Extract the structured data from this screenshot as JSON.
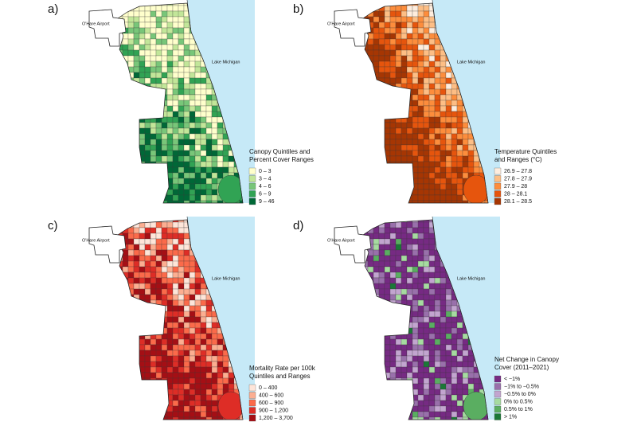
{
  "airport_label": "O'Hare Airport",
  "lake_label": "Lake Michigan",
  "panels": [
    {
      "label": "a)",
      "legend_title": [
        "Canopy Quintiles and",
        "Percent Cover Ranges"
      ],
      "legend": [
        {
          "label": "0 – 3",
          "color": "#ffffcc"
        },
        {
          "label": "3 – 4",
          "color": "#c2e699"
        },
        {
          "label": "4 – 6",
          "color": "#78c679"
        },
        {
          "label": "6 – 9",
          "color": "#31a354"
        },
        {
          "label": "9 – 46",
          "color": "#006837"
        }
      ]
    },
    {
      "label": "b)",
      "legend_title": [
        "Temperature Quintiles",
        "and Ranges (°C)"
      ],
      "legend": [
        {
          "label": "26.9 – 27.8",
          "color": "#feedde"
        },
        {
          "label": "27.8 – 27.9",
          "color": "#fdbe85"
        },
        {
          "label": "27.9 – 28",
          "color": "#fd8d3c"
        },
        {
          "label": "28 – 28.1",
          "color": "#e6550d"
        },
        {
          "label": "28.1 – 28.5",
          "color": "#a63603"
        }
      ]
    },
    {
      "label": "c)",
      "legend_title": [
        "Mortality Rate per 100k",
        "Quintiles and Ranges"
      ],
      "legend": [
        {
          "label": "0 – 400",
          "color": "#fee5d9"
        },
        {
          "label": "400 – 600",
          "color": "#fcae91"
        },
        {
          "label": "600 – 900",
          "color": "#fb6a4a"
        },
        {
          "label": "900 – 1,200",
          "color": "#de2d26"
        },
        {
          "label": "1,200 – 3,700",
          "color": "#a50f15"
        }
      ]
    },
    {
      "label": "d)",
      "legend_title": [
        "Net Change in Canopy",
        "Cover (2011–2021)"
      ],
      "legend": [
        {
          "label": "< −1%",
          "color": "#762a83"
        },
        {
          "label": "−1% to −0.5%",
          "color": "#9970ab"
        },
        {
          "label": "−0.5% to 0%",
          "color": "#c2a5cf"
        },
        {
          "label": "0% to 0.5%",
          "color": "#a6dba0"
        },
        {
          "label": "0.5% to 1%",
          "color": "#5aae61"
        },
        {
          "label": "> 1%",
          "color": "#1b7837"
        }
      ]
    }
  ]
}
